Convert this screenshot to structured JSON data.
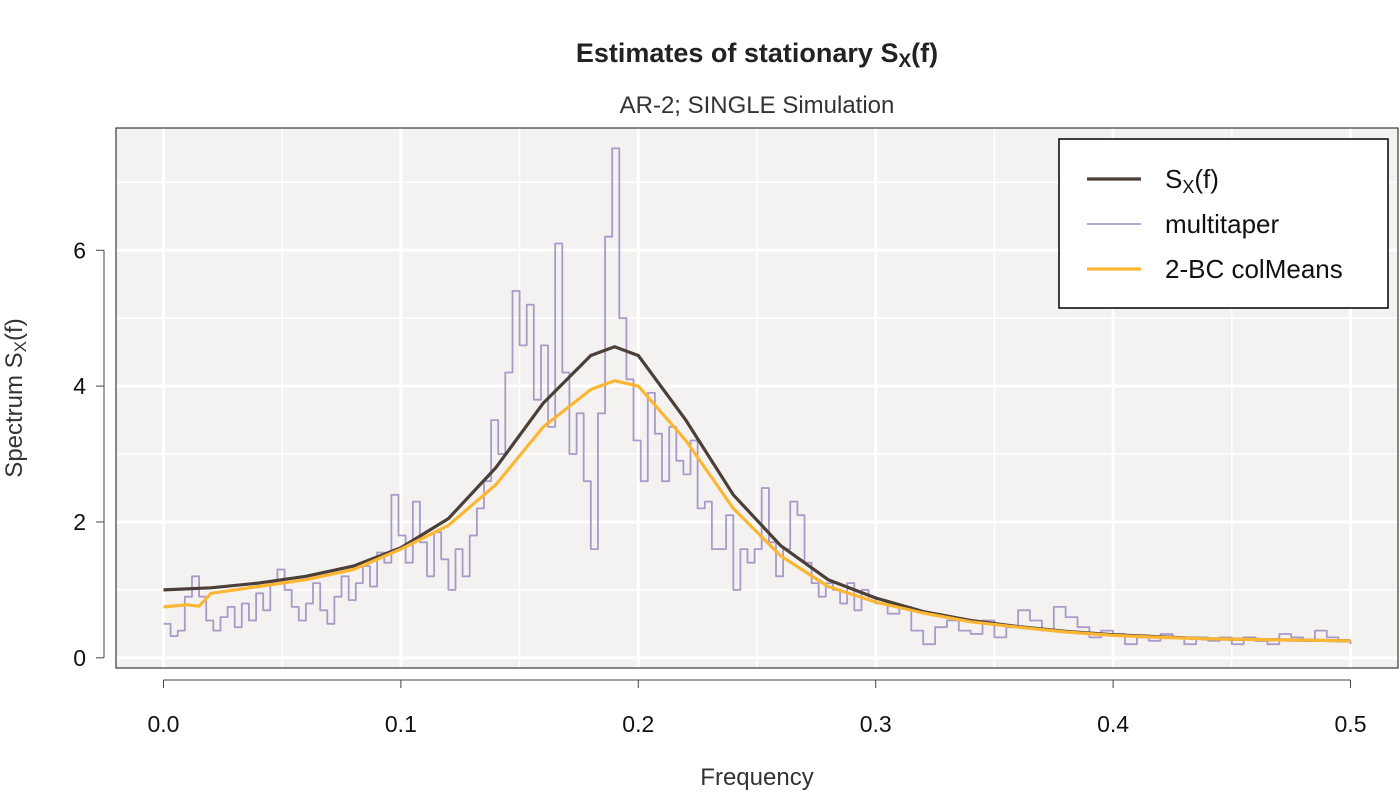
{
  "chart_data": {
    "type": "line",
    "title": {
      "main": "Estimates of stationary S",
      "sub": "X",
      "tail": "(f)"
    },
    "subtitle": "AR-2; SINGLE Simulation",
    "xlabel": "Frequency",
    "ylabel": {
      "main": "Spectrum S",
      "sub": "X",
      "tail": "(f)"
    },
    "xlim": [
      -0.02,
      0.52
    ],
    "ylim": [
      -0.15,
      7.8
    ],
    "xticks": [
      0.0,
      0.1,
      0.2,
      0.3,
      0.4,
      0.5
    ],
    "xtick_labels": [
      "0.0",
      "0.1",
      "0.2",
      "0.3",
      "0.4",
      "0.5"
    ],
    "yticks": [
      0,
      2,
      4,
      6
    ],
    "ytick_labels": [
      "0",
      "2",
      "4",
      "6"
    ],
    "grid": true,
    "legend_position": "top-right",
    "colors": {
      "panel_background": "#f3f2f1",
      "grid": "#ffffff",
      "true_spectrum": "#4b3f38",
      "multitaper": "#ab99c8",
      "bc_colmeans": "#fbb733"
    },
    "series": [
      {
        "name": {
          "main": "S",
          "sub": "X",
          "tail": "(f)"
        },
        "style": "true_spectrum",
        "x": [
          0.0,
          0.02,
          0.04,
          0.06,
          0.08,
          0.1,
          0.12,
          0.14,
          0.16,
          0.18,
          0.19,
          0.2,
          0.22,
          0.24,
          0.26,
          0.28,
          0.3,
          0.32,
          0.34,
          0.36,
          0.38,
          0.4,
          0.42,
          0.44,
          0.46,
          0.48,
          0.5
        ],
        "y": [
          1.0,
          1.03,
          1.1,
          1.2,
          1.35,
          1.62,
          2.05,
          2.8,
          3.75,
          4.45,
          4.58,
          4.45,
          3.5,
          2.4,
          1.65,
          1.15,
          0.88,
          0.68,
          0.55,
          0.46,
          0.39,
          0.34,
          0.31,
          0.28,
          0.27,
          0.26,
          0.25
        ]
      },
      {
        "name": "multitaper",
        "style": "multitaper",
        "x": [
          0.0,
          0.003,
          0.006,
          0.009,
          0.012,
          0.015,
          0.018,
          0.021,
          0.024,
          0.027,
          0.03,
          0.033,
          0.036,
          0.039,
          0.042,
          0.045,
          0.048,
          0.051,
          0.054,
          0.057,
          0.06,
          0.063,
          0.066,
          0.069,
          0.072,
          0.075,
          0.078,
          0.081,
          0.084,
          0.087,
          0.09,
          0.093,
          0.096,
          0.099,
          0.102,
          0.105,
          0.108,
          0.111,
          0.114,
          0.117,
          0.12,
          0.123,
          0.126,
          0.129,
          0.132,
          0.135,
          0.138,
          0.141,
          0.144,
          0.147,
          0.15,
          0.153,
          0.156,
          0.159,
          0.162,
          0.165,
          0.168,
          0.171,
          0.174,
          0.177,
          0.18,
          0.183,
          0.186,
          0.189,
          0.192,
          0.195,
          0.198,
          0.201,
          0.204,
          0.207,
          0.21,
          0.213,
          0.216,
          0.219,
          0.222,
          0.225,
          0.228,
          0.231,
          0.234,
          0.237,
          0.24,
          0.243,
          0.246,
          0.249,
          0.252,
          0.255,
          0.258,
          0.261,
          0.264,
          0.267,
          0.27,
          0.273,
          0.276,
          0.279,
          0.282,
          0.285,
          0.288,
          0.291,
          0.294,
          0.297,
          0.3,
          0.305,
          0.31,
          0.315,
          0.32,
          0.325,
          0.33,
          0.335,
          0.34,
          0.345,
          0.35,
          0.355,
          0.36,
          0.365,
          0.37,
          0.375,
          0.38,
          0.385,
          0.39,
          0.395,
          0.4,
          0.405,
          0.41,
          0.415,
          0.42,
          0.425,
          0.43,
          0.435,
          0.44,
          0.445,
          0.45,
          0.455,
          0.46,
          0.465,
          0.47,
          0.475,
          0.48,
          0.485,
          0.49,
          0.495,
          0.5
        ],
        "y": [
          0.5,
          0.32,
          0.4,
          0.9,
          1.2,
          0.9,
          0.55,
          0.4,
          0.6,
          0.75,
          0.45,
          0.8,
          0.55,
          0.95,
          0.7,
          1.1,
          1.3,
          1.0,
          0.75,
          0.55,
          0.8,
          1.1,
          0.7,
          0.5,
          0.9,
          1.2,
          0.85,
          1.1,
          1.35,
          1.05,
          1.55,
          1.4,
          2.4,
          1.8,
          1.4,
          2.3,
          1.7,
          1.2,
          1.85,
          1.45,
          1.0,
          1.6,
          1.2,
          1.8,
          2.2,
          2.6,
          3.5,
          3.0,
          4.2,
          5.4,
          4.6,
          5.2,
          3.8,
          4.6,
          3.4,
          6.1,
          4.2,
          3.0,
          3.6,
          2.6,
          1.6,
          3.6,
          6.2,
          7.5,
          5.0,
          4.1,
          3.2,
          2.6,
          3.9,
          3.3,
          2.6,
          3.4,
          2.9,
          2.7,
          3.2,
          2.2,
          2.3,
          1.6,
          1.6,
          2.1,
          1.0,
          1.6,
          1.4,
          1.6,
          2.5,
          1.7,
          1.2,
          1.6,
          2.3,
          2.1,
          1.4,
          1.1,
          0.9,
          1.1,
          1.0,
          0.8,
          1.1,
          0.7,
          1.0,
          0.9,
          0.8,
          0.65,
          0.75,
          0.4,
          0.2,
          0.45,
          0.55,
          0.4,
          0.35,
          0.55,
          0.3,
          0.45,
          0.7,
          0.55,
          0.4,
          0.75,
          0.6,
          0.45,
          0.3,
          0.4,
          0.35,
          0.2,
          0.3,
          0.25,
          0.35,
          0.3,
          0.2,
          0.3,
          0.25,
          0.3,
          0.2,
          0.3,
          0.25,
          0.2,
          0.35,
          0.3,
          0.25,
          0.4,
          0.3,
          0.25,
          0.2
        ]
      },
      {
        "name": "2-BC colMeans",
        "style": "bc_colmeans",
        "x": [
          0.0,
          0.01,
          0.015,
          0.02,
          0.04,
          0.06,
          0.08,
          0.1,
          0.12,
          0.14,
          0.16,
          0.18,
          0.19,
          0.2,
          0.22,
          0.24,
          0.26,
          0.28,
          0.3,
          0.32,
          0.34,
          0.36,
          0.38,
          0.4,
          0.42,
          0.44,
          0.46,
          0.48,
          0.5
        ],
        "y": [
          0.75,
          0.78,
          0.76,
          0.95,
          1.05,
          1.15,
          1.3,
          1.6,
          1.95,
          2.55,
          3.4,
          3.95,
          4.08,
          4.0,
          3.2,
          2.2,
          1.5,
          1.05,
          0.82,
          0.66,
          0.53,
          0.45,
          0.38,
          0.33,
          0.3,
          0.28,
          0.27,
          0.26,
          0.25
        ]
      }
    ]
  }
}
